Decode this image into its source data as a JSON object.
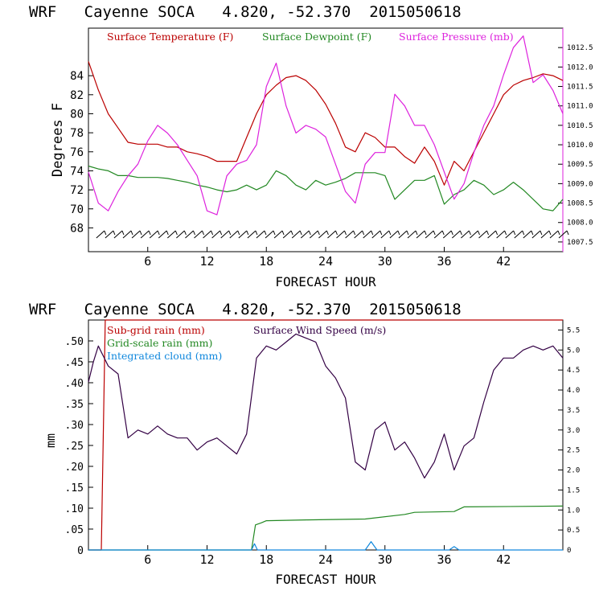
{
  "chart_data": [
    {
      "type": "line",
      "title": "WRF   Cayenne SOCA   4.820, -52.370  2015050618",
      "xlabel": "FORECAST HOUR",
      "ylabel": "Degrees F",
      "xlim": [
        0,
        48
      ],
      "ylim": [
        65.5,
        89
      ],
      "y2lim": [
        1007.25,
        1013.0
      ],
      "x_ticks": [
        6,
        12,
        18,
        24,
        30,
        36,
        42
      ],
      "y_ticks": [
        68,
        70,
        72,
        74,
        76,
        78,
        80,
        82,
        84
      ],
      "y2_ticks": [
        "1007.5",
        "1008.0",
        "1008.5",
        "1009.0",
        "1009.5",
        "1010.0",
        "1010.5",
        "1011.0",
        "1011.5",
        "1012.0",
        "1012.5"
      ],
      "series": [
        {
          "name": "Surface Temperature (F)",
          "color": "#bb0000",
          "axis": "left",
          "x": [
            0,
            1,
            2,
            3,
            4,
            5,
            6,
            7,
            8,
            9,
            10,
            11,
            12,
            13,
            14,
            15,
            16,
            17,
            18,
            19,
            20,
            21,
            22,
            23,
            24,
            25,
            26,
            27,
            28,
            29,
            30,
            31,
            32,
            33,
            34,
            35,
            36,
            37,
            38,
            39,
            40,
            41,
            42,
            43,
            44,
            45,
            46,
            47,
            48
          ],
          "values": [
            85.5,
            82.5,
            80.0,
            78.5,
            77.0,
            76.8,
            76.8,
            76.8,
            76.5,
            76.5,
            76.0,
            75.8,
            75.5,
            75.0,
            75.0,
            75.0,
            77.5,
            80.0,
            82.0,
            83.0,
            83.8,
            84.0,
            83.5,
            82.5,
            81.0,
            79.0,
            76.5,
            76.0,
            78.0,
            77.5,
            76.5,
            76.5,
            75.5,
            74.8,
            76.5,
            75.0,
            72.5,
            75.0,
            74.0,
            76.0,
            78.0,
            80.0,
            82.0,
            83.0,
            83.5,
            83.8,
            84.2,
            84.0,
            83.5
          ]
        },
        {
          "name": "Surface Dewpoint (F)",
          "color": "#228822",
          "axis": "left",
          "x": [
            0,
            1,
            2,
            3,
            4,
            5,
            6,
            7,
            8,
            9,
            10,
            11,
            12,
            13,
            14,
            15,
            16,
            17,
            18,
            19,
            20,
            21,
            22,
            23,
            24,
            25,
            26,
            27,
            28,
            29,
            30,
            31,
            32,
            33,
            34,
            35,
            36,
            37,
            38,
            39,
            40,
            41,
            42,
            43,
            44,
            45,
            46,
            47,
            48
          ],
          "values": [
            74.5,
            74.2,
            74.0,
            73.5,
            73.5,
            73.3,
            73.3,
            73.3,
            73.2,
            73.0,
            72.8,
            72.5,
            72.3,
            72.0,
            71.8,
            72.0,
            72.5,
            72.0,
            72.5,
            74.0,
            73.5,
            72.5,
            72.0,
            73.0,
            72.5,
            72.8,
            73.2,
            73.8,
            73.8,
            73.8,
            73.5,
            71.0,
            72.0,
            73.0,
            73.0,
            73.5,
            70.5,
            71.5,
            72.0,
            73.0,
            72.5,
            71.5,
            72.0,
            72.8,
            72.0,
            71.0,
            70.0,
            69.8,
            71.0
          ]
        },
        {
          "name": "Surface Pressure (mb)",
          "color": "#dd22dd",
          "axis": "right",
          "x": [
            0,
            1,
            2,
            3,
            4,
            5,
            6,
            7,
            8,
            9,
            10,
            11,
            12,
            13,
            14,
            15,
            16,
            17,
            18,
            19,
            20,
            21,
            22,
            23,
            24,
            25,
            26,
            27,
            28,
            29,
            30,
            31,
            32,
            33,
            34,
            35,
            36,
            37,
            38,
            39,
            40,
            41,
            42,
            43,
            44,
            45,
            46,
            47,
            48
          ],
          "values": [
            1009.3,
            1008.5,
            1008.3,
            1008.8,
            1009.2,
            1009.5,
            1010.1,
            1010.5,
            1010.3,
            1010.0,
            1009.6,
            1009.2,
            1008.3,
            1008.2,
            1009.2,
            1009.5,
            1009.6,
            1010.0,
            1011.5,
            1012.1,
            1011.0,
            1010.3,
            1010.5,
            1010.4,
            1010.2,
            1009.5,
            1008.8,
            1008.5,
            1009.5,
            1009.8,
            1009.8,
            1011.3,
            1011.0,
            1010.5,
            1010.5,
            1010.0,
            1009.3,
            1008.6,
            1009.0,
            1009.8,
            1010.5,
            1011.0,
            1011.8,
            1012.5,
            1012.8,
            1011.6,
            1011.8,
            1011.4,
            1010.8
          ]
        }
      ],
      "wind_barbs": "hourly wind barbs along bottom of panel"
    },
    {
      "type": "line",
      "title": "WRF   Cayenne SOCA   4.820, -52.370  2015050618",
      "xlabel": "FORECAST HOUR",
      "ylabel": "mm",
      "xlim": [
        0,
        48
      ],
      "ylim": [
        0,
        0.55
      ],
      "y2lim": [
        0,
        5.75
      ],
      "x_ticks": [
        6,
        12,
        18,
        24,
        30,
        36,
        42
      ],
      "y_ticks": [
        "0",
        ".05",
        ".10",
        ".15",
        ".20",
        ".25",
        ".30",
        ".35",
        ".40",
        ".45",
        ".50"
      ],
      "y2_ticks": [
        "0",
        "0.5",
        "1.0",
        "1.5",
        "2.0",
        "2.5",
        "3.0",
        "3.5",
        "4.0",
        "4.5",
        "5.0",
        "5.5"
      ],
      "series": [
        {
          "name": "Sub-grid rain (mm)",
          "color": "#bb0000",
          "axis": "left",
          "x": [
            0,
            1.3,
            1.7,
            48
          ],
          "values": [
            0,
            0,
            0.55,
            0.55
          ]
        },
        {
          "name": "Grid-scale rain (mm)",
          "color": "#228822",
          "axis": "left",
          "x": [
            0,
            16.5,
            16.9,
            17.5,
            18.0,
            22.0,
            28.0,
            32.0,
            33.0,
            37.0,
            38.0,
            48.0
          ],
          "values": [
            0,
            0,
            0.06,
            0.065,
            0.07,
            0.072,
            0.074,
            0.085,
            0.09,
            0.092,
            0.103,
            0.105
          ]
        },
        {
          "name": "Integrated cloud (mm)",
          "color": "#1188dd",
          "axis": "left",
          "x": [
            0,
            16.5,
            16.8,
            17.1,
            28.0,
            28.6,
            29.2,
            36.5,
            37.0,
            37.5,
            48
          ],
          "values": [
            0,
            0,
            0.015,
            0,
            0,
            0.02,
            0,
            0,
            0.008,
            0,
            0
          ]
        },
        {
          "name": "Surface Wind Speed (m/s)",
          "color": "#330044",
          "axis": "right",
          "x": [
            0,
            0.5,
            1,
            2,
            3,
            4,
            5,
            6,
            7,
            8,
            9,
            10,
            11,
            12,
            13,
            14,
            15,
            16,
            17,
            18,
            19,
            20,
            21,
            22,
            23,
            24,
            25,
            26,
            27,
            28,
            29,
            30,
            31,
            32,
            33,
            34,
            35,
            36,
            37,
            38,
            39,
            40,
            41,
            42,
            43,
            44,
            45,
            46,
            47,
            48
          ],
          "values": [
            4.2,
            4.7,
            5.1,
            4.6,
            4.4,
            2.8,
            3.0,
            2.9,
            3.1,
            2.9,
            2.8,
            2.8,
            2.5,
            2.7,
            2.8,
            2.6,
            2.4,
            2.9,
            4.8,
            5.1,
            5.0,
            5.2,
            5.4,
            5.3,
            5.2,
            4.6,
            4.3,
            3.8,
            2.2,
            2.0,
            3.0,
            3.2,
            2.5,
            2.7,
            2.3,
            1.8,
            2.2,
            2.9,
            2.0,
            2.6,
            2.8,
            3.7,
            4.5,
            4.8,
            4.8,
            5.0,
            5.1,
            5.0,
            5.1,
            4.8
          ]
        }
      ]
    }
  ]
}
